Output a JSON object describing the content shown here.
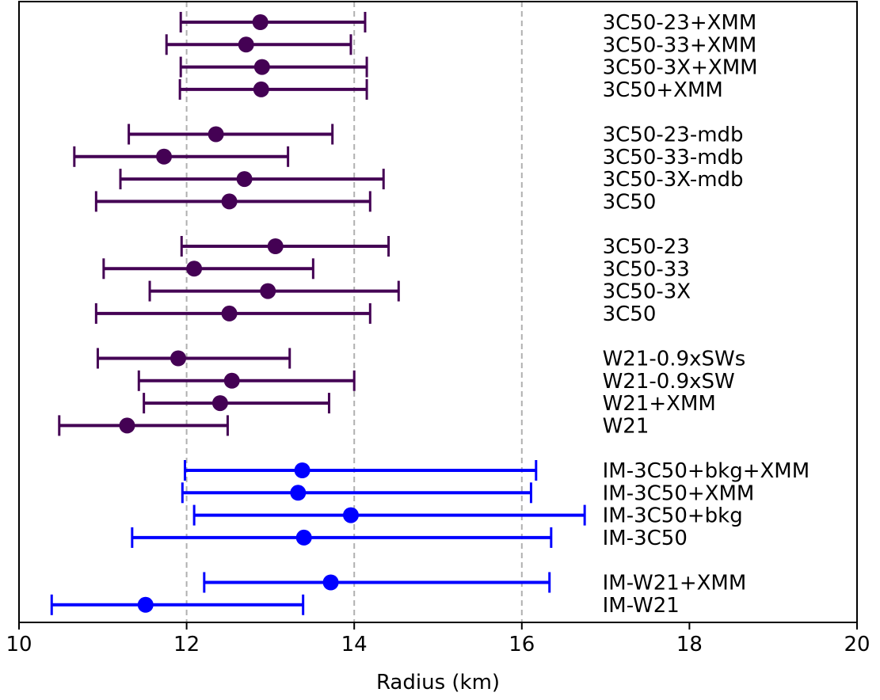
{
  "chart_data": {
    "type": "scatter",
    "orientation": "horizontal-errorbar",
    "xlabel": "Radius (km)",
    "xlim": [
      10,
      20
    ],
    "xticks": [
      "10",
      "12",
      "14",
      "16",
      "18",
      "20"
    ],
    "reference_lines": [
      12,
      14,
      16
    ],
    "label_x": 17.0,
    "colors": {
      "purple": "#440154",
      "blue": "#0000ff",
      "refline": "#b0b0b0"
    },
    "rows": [
      {
        "label": "3C50-23+XMM",
        "value": 12.88,
        "low": 11.93,
        "high": 14.13,
        "color": "#440154"
      },
      {
        "label": "3C50-33+XMM",
        "value": 12.71,
        "low": 11.76,
        "high": 13.96,
        "color": "#440154"
      },
      {
        "label": "3C50-3X+XMM",
        "value": 12.9,
        "low": 11.93,
        "high": 14.15,
        "color": "#440154"
      },
      {
        "label": "3C50+XMM",
        "value": 12.89,
        "low": 11.92,
        "high": 14.15,
        "color": "#440154"
      },
      {
        "label": "3C50-23-mdb",
        "value": 12.35,
        "low": 11.31,
        "high": 13.74,
        "color": "#440154"
      },
      {
        "label": "3C50-33-mdb",
        "value": 11.73,
        "low": 10.66,
        "high": 13.21,
        "color": "#440154"
      },
      {
        "label": "3C50-3X-mdb",
        "value": 12.69,
        "low": 11.21,
        "high": 14.35,
        "color": "#440154"
      },
      {
        "label": "3C50",
        "value": 12.51,
        "low": 10.92,
        "high": 14.19,
        "color": "#440154"
      },
      {
        "label": "3C50-23",
        "value": 13.06,
        "low": 11.94,
        "high": 14.41,
        "color": "#440154"
      },
      {
        "label": "3C50-33",
        "value": 12.09,
        "low": 11.01,
        "high": 13.51,
        "color": "#440154"
      },
      {
        "label": "3C50-3X",
        "value": 12.97,
        "low": 11.56,
        "high": 14.53,
        "color": "#440154"
      },
      {
        "label": "3C50",
        "value": 12.51,
        "low": 10.92,
        "high": 14.19,
        "color": "#440154"
      },
      {
        "label": "W21-0.9xSWs",
        "value": 11.9,
        "low": 10.94,
        "high": 13.23,
        "color": "#440154"
      },
      {
        "label": "W21-0.9xSW",
        "value": 12.54,
        "low": 11.43,
        "high": 14.0,
        "color": "#440154"
      },
      {
        "label": "W21+XMM",
        "value": 12.4,
        "low": 11.49,
        "high": 13.7,
        "color": "#440154"
      },
      {
        "label": "W21",
        "value": 11.29,
        "low": 10.48,
        "high": 12.49,
        "color": "#440154"
      },
      {
        "label": "IM-3C50+bkg+XMM",
        "value": 13.38,
        "low": 11.98,
        "high": 16.17,
        "color": "#0000ff"
      },
      {
        "label": "IM-3C50+XMM",
        "value": 13.33,
        "low": 11.95,
        "high": 16.11,
        "color": "#0000ff"
      },
      {
        "label": "IM-3C50+bkg",
        "value": 13.96,
        "low": 12.09,
        "high": 16.75,
        "color": "#0000ff"
      },
      {
        "label": "IM-3C50",
        "value": 13.4,
        "low": 11.35,
        "high": 16.35,
        "color": "#0000ff"
      },
      {
        "label": "IM-W21+XMM",
        "value": 13.72,
        "low": 12.21,
        "high": 16.33,
        "color": "#0000ff"
      },
      {
        "label": "IM-W21",
        "value": 11.51,
        "low": 10.39,
        "high": 13.39,
        "color": "#0000ff"
      }
    ],
    "groups": [
      [
        0,
        1,
        2,
        3
      ],
      [
        4,
        5,
        6,
        7
      ],
      [
        8,
        9,
        10,
        11
      ],
      [
        12,
        13,
        14,
        15
      ],
      [
        16,
        17,
        18,
        19
      ],
      [
        20,
        21
      ]
    ]
  }
}
